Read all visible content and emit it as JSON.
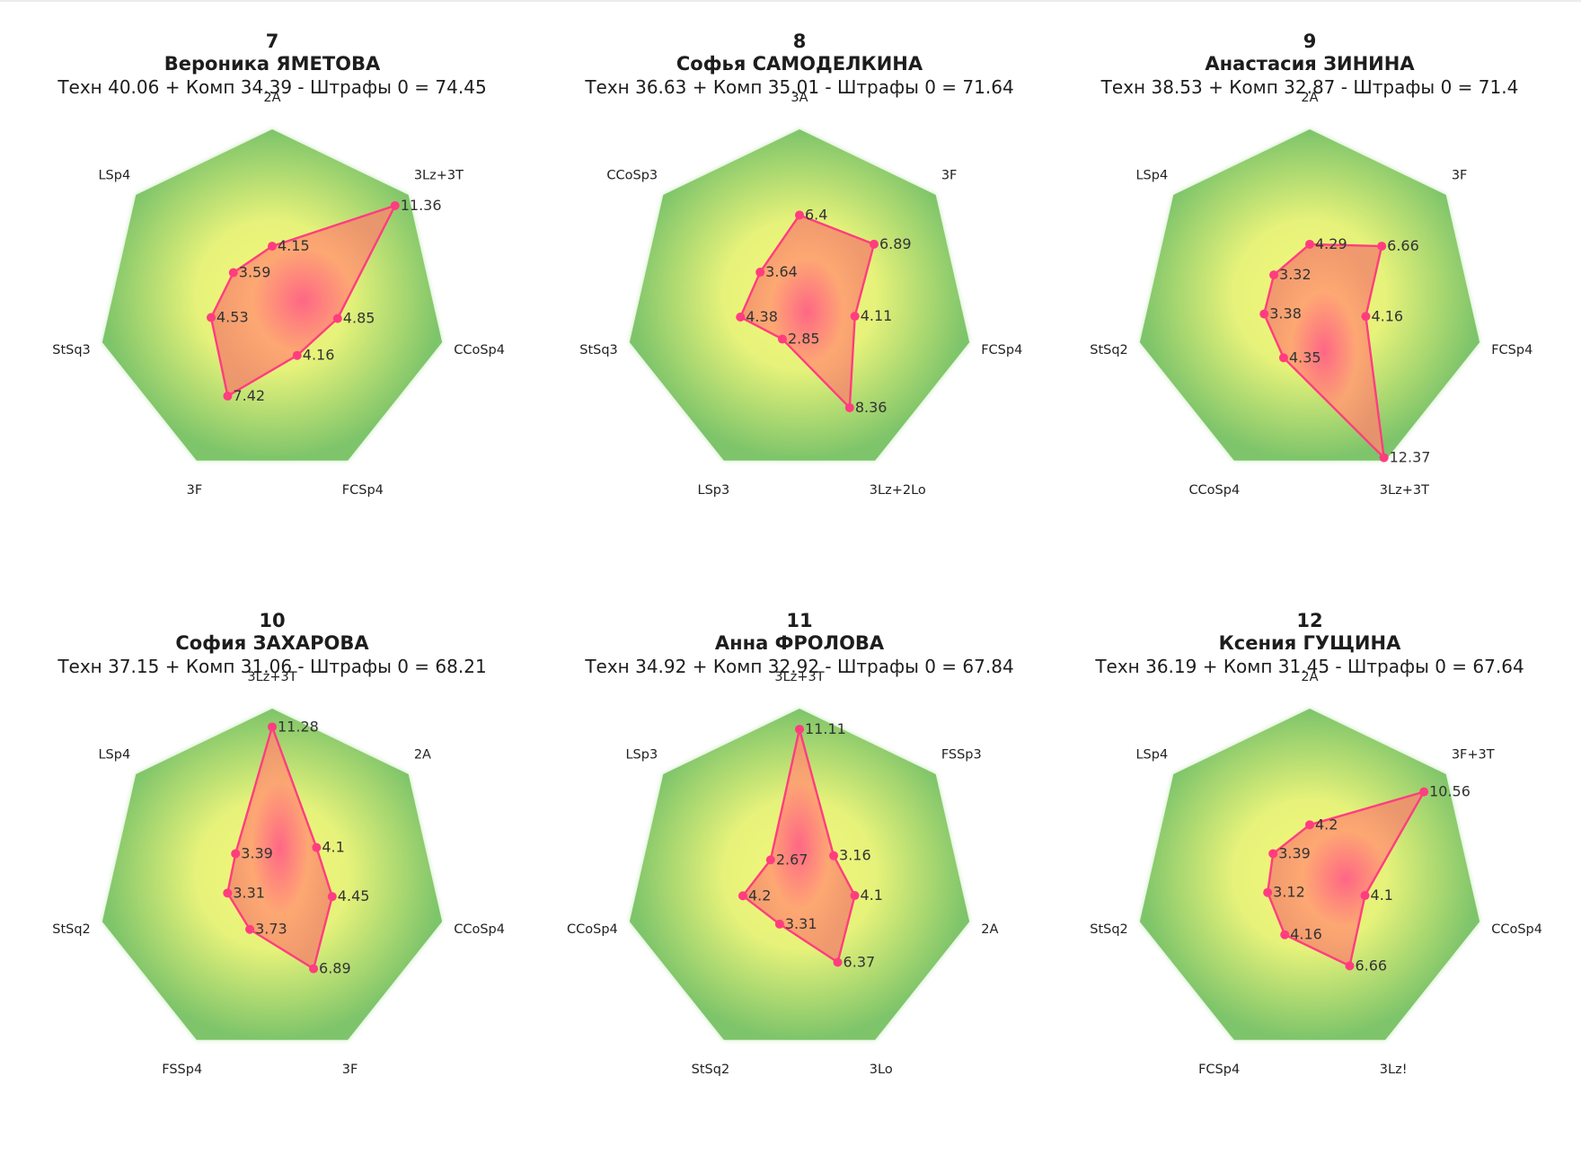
{
  "chart_data": [
    {
      "type": "radar",
      "rank": "7",
      "name": "Вероника ЯМЕТОВА",
      "score": "Техн 40.06 + Комп 34.39 - Штрафы 0 = 74.45",
      "categories": [
        "2A",
        "3Lz+3T",
        "CCoSp4",
        "FCSp4",
        "3F",
        "StSq3",
        "LSp4"
      ],
      "values": [
        4.15,
        11.36,
        4.85,
        4.16,
        7.42,
        4.53,
        3.59
      ]
    },
    {
      "type": "radar",
      "rank": "8",
      "name": "Софья САМОДЕЛКИНА",
      "score": "Техн 36.63 + Комп 35.01 - Штрафы 0 = 71.64",
      "categories": [
        "3A",
        "3F",
        "FCSp4",
        "3Lz+2Lo",
        "LSp3",
        "StSq3",
        "CCoSp3"
      ],
      "values": [
        6.4,
        6.89,
        4.11,
        8.36,
        2.85,
        4.38,
        3.64
      ]
    },
    {
      "type": "radar",
      "rank": "9",
      "name": "Анастасия ЗИНИНА",
      "score": "Техн 38.53 + Комп 32.87 - Штрафы 0 = 71.4",
      "categories": [
        "2A",
        "3F",
        "FCSp4",
        "3Lz+3T",
        "CCoSp4",
        "StSq2",
        "LSp4"
      ],
      "values": [
        4.29,
        6.66,
        4.16,
        12.37,
        4.35,
        3.38,
        3.32
      ]
    },
    {
      "type": "radar",
      "rank": "10",
      "name": "София ЗАХАРОВА",
      "score": "Техн 37.15 + Комп 31.06 - Штрафы 0 = 68.21",
      "categories": [
        "3Lz+3T",
        "2A",
        "CCoSp4",
        "3F",
        "FSSp4",
        "StSq2",
        "LSp4"
      ],
      "values": [
        11.28,
        4.1,
        4.45,
        6.89,
        3.73,
        3.31,
        3.39
      ]
    },
    {
      "type": "radar",
      "rank": "11",
      "name": "Анна ФРОЛОВА",
      "score": "Техн 34.92 + Комп 32.92 - Штрафы 0 = 67.84",
      "categories": [
        "3Lz+3T",
        "FSSp3",
        "2A",
        "3Lo",
        "StSq2",
        "CCoSp4",
        "LSp3"
      ],
      "values": [
        11.11,
        3.16,
        4.1,
        6.37,
        3.31,
        4.2,
        2.67
      ]
    },
    {
      "type": "radar",
      "rank": "12",
      "name": "Ксения ГУЩИНА",
      "score": "Техн 36.19 + Комп 31.45 - Штрафы 0 = 67.64",
      "categories": [
        "2A",
        "3F+3T",
        "CCoSp4",
        "3Lz!",
        "FCSp4",
        "StSq2",
        "LSp4"
      ],
      "values": [
        4.2,
        10.56,
        4.1,
        6.66,
        4.16,
        3.12,
        3.39
      ]
    }
  ],
  "colors": {
    "outer_green": "#7dc46a",
    "inner_yellow": "#f4f77a",
    "fill_center": "#ff5f86",
    "fill_mid": "#ff9f72",
    "line": "#ff3d7f",
    "text": "#1d1d1d"
  }
}
